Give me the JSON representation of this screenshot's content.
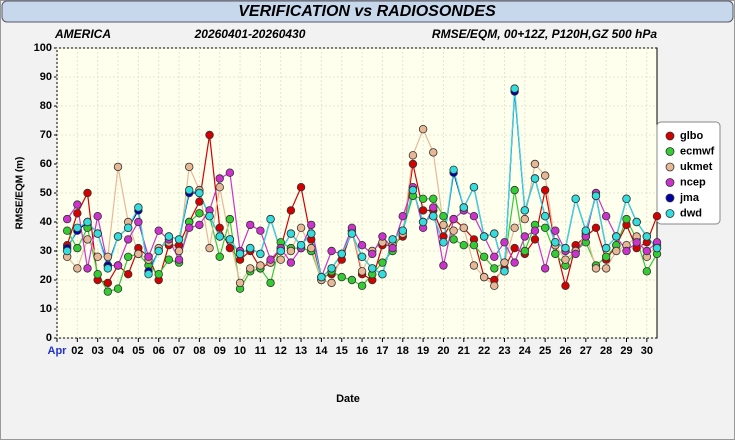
{
  "chart_data": {
    "type": "line",
    "title": "VERIFICATION vs RADIOSONDES",
    "region": "AMERICA",
    "period": "20260401-20260430",
    "description": "RMSE/EQM, 00+12Z, P120H,GZ 500 hPa",
    "xlabel": "Date",
    "ylabel": "RMSE/EQM (m)",
    "xlim": [
      1,
      30.5
    ],
    "ylim": [
      0,
      100
    ],
    "yticks": [
      0,
      10,
      20,
      30,
      40,
      50,
      60,
      70,
      80,
      90,
      100
    ],
    "xticks": [
      {
        "value": 1,
        "label": "Apr"
      },
      {
        "value": 2,
        "label": "02"
      },
      {
        "value": 3,
        "label": "03"
      },
      {
        "value": 4,
        "label": "04"
      },
      {
        "value": 5,
        "label": "05"
      },
      {
        "value": 6,
        "label": "06"
      },
      {
        "value": 7,
        "label": "07"
      },
      {
        "value": 8,
        "label": "08"
      },
      {
        "value": 9,
        "label": "09"
      },
      {
        "value": 10,
        "label": "10"
      },
      {
        "value": 11,
        "label": "11"
      },
      {
        "value": 12,
        "label": "12"
      },
      {
        "value": 13,
        "label": "13"
      },
      {
        "value": 14,
        "label": "14"
      },
      {
        "value": 15,
        "label": "15"
      },
      {
        "value": 16,
        "label": "16"
      },
      {
        "value": 17,
        "label": "17"
      },
      {
        "value": 18,
        "label": "18"
      },
      {
        "value": 19,
        "label": "19"
      },
      {
        "value": 20,
        "label": "20"
      },
      {
        "value": 21,
        "label": "21"
      },
      {
        "value": 22,
        "label": "22"
      },
      {
        "value": 23,
        "label": "23"
      },
      {
        "value": 24,
        "label": "24"
      },
      {
        "value": 25,
        "label": "25"
      },
      {
        "value": 26,
        "label": "26"
      },
      {
        "value": 27,
        "label": "27"
      },
      {
        "value": 28,
        "label": "28"
      },
      {
        "value": 29,
        "label": "29"
      },
      {
        "value": 30,
        "label": "30"
      }
    ],
    "grid": true,
    "legend": "right",
    "x": [
      1.5,
      2,
      2.5,
      3,
      3.5,
      4,
      4.5,
      5,
      5.5,
      6,
      6.5,
      7,
      7.5,
      8,
      8.5,
      9,
      9.5,
      10,
      10.5,
      11,
      11.5,
      12,
      12.5,
      13,
      13.5,
      14,
      14.5,
      15,
      15.5,
      16,
      16.5,
      17,
      17.5,
      18,
      18.5,
      19,
      19.5,
      20,
      20.5,
      21,
      21.5,
      22,
      22.5,
      23,
      23.5,
      24,
      24.5,
      25,
      25.5,
      26,
      26.5,
      27,
      27.5,
      28,
      28.5,
      29,
      29.5,
      30,
      30.5
    ],
    "series": [
      {
        "name": "glbo",
        "color": "#d40000",
        "values": [
          32,
          43,
          50,
          20,
          19,
          25,
          22,
          31,
          28,
          20,
          32,
          32,
          40,
          47,
          70,
          38,
          31,
          27,
          30,
          24,
          26,
          31,
          44,
          52,
          34,
          21,
          22,
          27,
          37,
          22,
          20,
          32,
          32,
          35,
          60,
          44,
          44,
          35,
          41,
          38,
          34,
          21,
          20,
          24,
          31,
          29,
          34,
          51,
          32,
          18,
          32,
          35,
          38,
          27,
          32,
          39,
          31,
          33,
          42
        ]
      },
      {
        "name": "ecmwf",
        "color": "#33cc33",
        "values": [
          37,
          31,
          38,
          22,
          16,
          17,
          28,
          29,
          25,
          22,
          27,
          26,
          40,
          43,
          42,
          28,
          41,
          17,
          23,
          24,
          19,
          33,
          31,
          31,
          30,
          20,
          23,
          21,
          20,
          18,
          22,
          26,
          30,
          37,
          49,
          48,
          48,
          42,
          34,
          32,
          32,
          28,
          24,
          26,
          51,
          30,
          39,
          38,
          29,
          25,
          30,
          33,
          25,
          28,
          32,
          41,
          34,
          23,
          29
        ]
      },
      {
        "name": "ukmet",
        "color": "#e8b896",
        "values": [
          28,
          24,
          34,
          28,
          28,
          59,
          40,
          29,
          27,
          31,
          33,
          30,
          59,
          51,
          31,
          52,
          34,
          19,
          24,
          25,
          26,
          27,
          30,
          38,
          31,
          20,
          19,
          29,
          37,
          23,
          30,
          33,
          32,
          36,
          63,
          72,
          64,
          39,
          37,
          38,
          25,
          21,
          18,
          26,
          38,
          41,
          60,
          56,
          32,
          27,
          30,
          36,
          24,
          24,
          30,
          32,
          35,
          28,
          32
        ]
      },
      {
        "name": "ncep",
        "color": "#cc33cc",
        "values": [
          41,
          46,
          24,
          42,
          25,
          25,
          34,
          40,
          28,
          37,
          34,
          27,
          38,
          39,
          44,
          55,
          57,
          30,
          39,
          37,
          27,
          31,
          26,
          31,
          39,
          21,
          30,
          29,
          38,
          32,
          29,
          35,
          31,
          42,
          52,
          38,
          45,
          25,
          41,
          44,
          42,
          35,
          28,
          33,
          26,
          35,
          37,
          24,
          37,
          30,
          29,
          35,
          50,
          42,
          35,
          30,
          33,
          30,
          33
        ]
      },
      {
        "name": "jma",
        "color": "#0000aa",
        "values": [
          31,
          37,
          40,
          36,
          25,
          35,
          38,
          44,
          23,
          30,
          35,
          34,
          50,
          50,
          42,
          35,
          34,
          29,
          31,
          29,
          41,
          30,
          36,
          32,
          36,
          21,
          24,
          29,
          36,
          28,
          24,
          22,
          34,
          37,
          51,
          40,
          42,
          33,
          57,
          45,
          52,
          35,
          36,
          23,
          85,
          44,
          55,
          42,
          33,
          31,
          48,
          37,
          49,
          31,
          35,
          48,
          40,
          35,
          31
        ]
      },
      {
        "name": "dwd",
        "color": "#33dddd",
        "values": [
          30,
          38,
          40,
          36,
          24,
          35,
          38,
          45,
          22,
          30,
          35,
          34,
          51,
          50,
          42,
          35,
          34,
          29,
          31,
          29,
          41,
          30,
          36,
          32,
          36,
          21,
          24,
          29,
          36,
          28,
          24,
          22,
          34,
          37,
          51,
          40,
          42,
          33,
          58,
          45,
          52,
          35,
          36,
          23,
          86,
          44,
          55,
          42,
          33,
          31,
          48,
          37,
          49,
          31,
          35,
          48,
          40,
          35,
          31
        ]
      }
    ]
  }
}
